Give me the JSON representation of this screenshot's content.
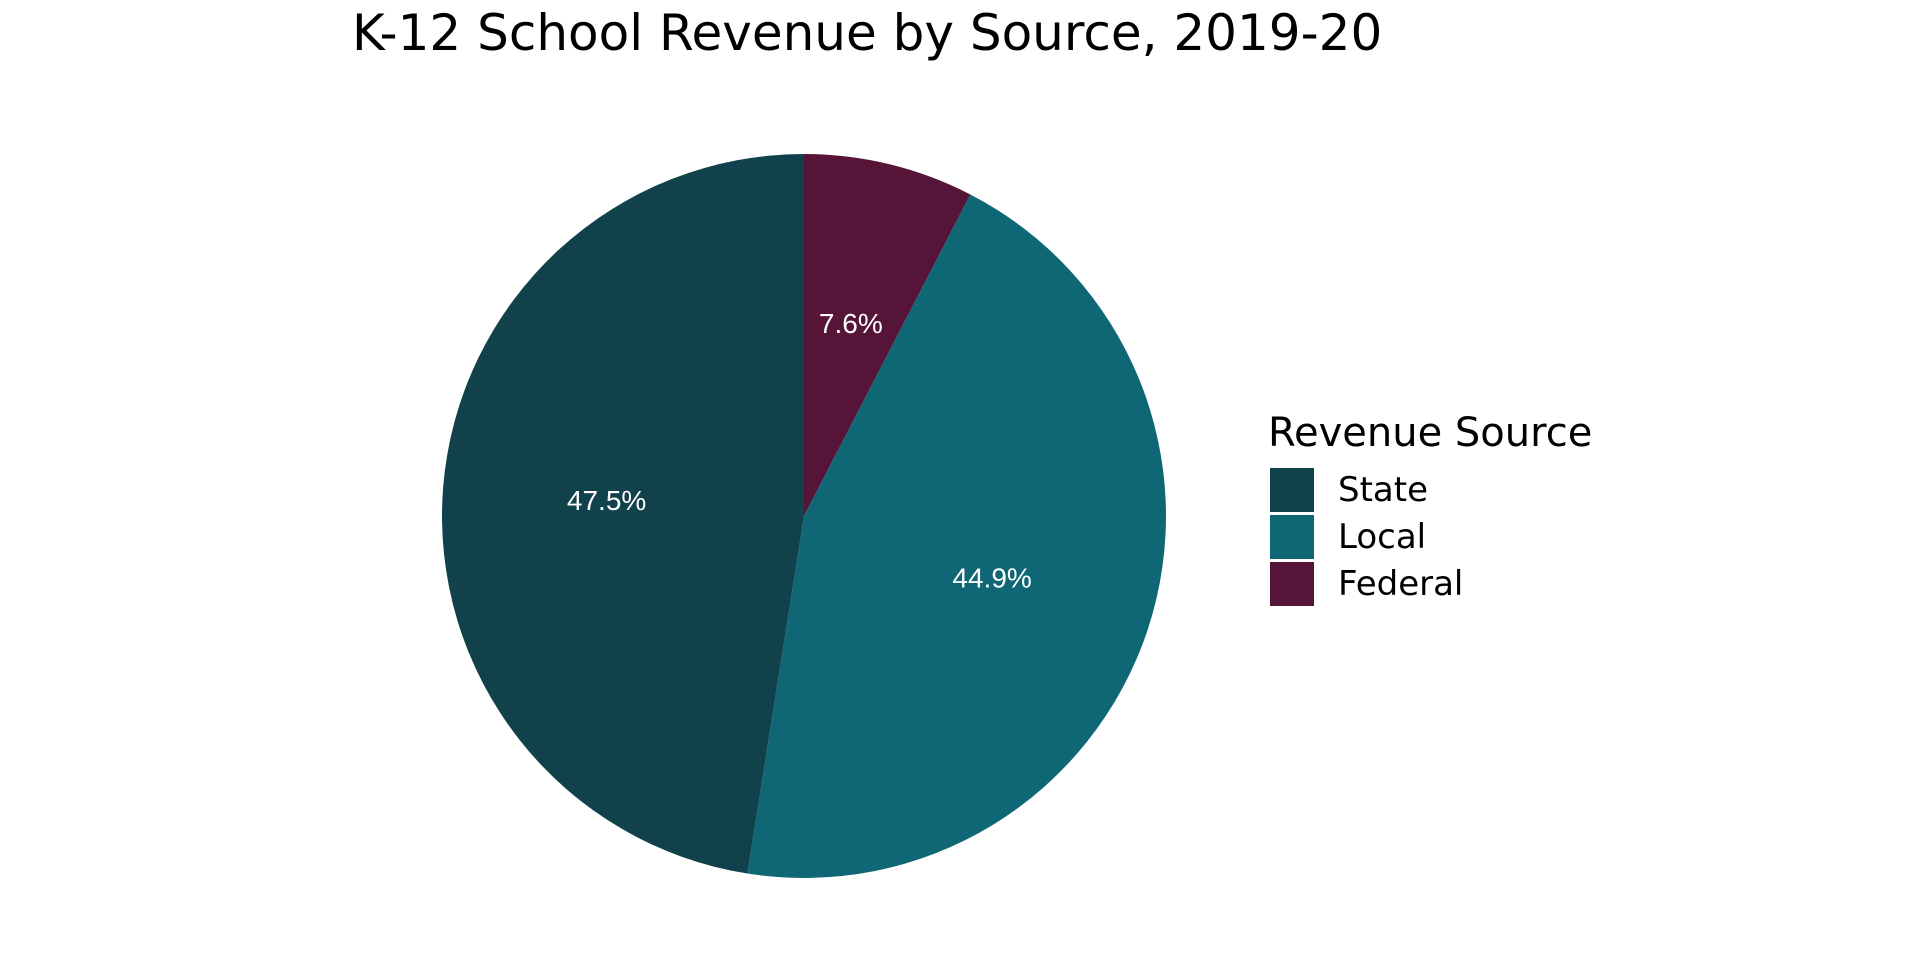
{
  "chart_data": {
    "type": "pie",
    "title": "K-12 School Revenue by Source, 2019-20",
    "legend_title": "Revenue Source",
    "legend_position": "right",
    "start_angle_deg": 0,
    "direction": "clockwise",
    "categories": [
      "Federal",
      "Local",
      "State"
    ],
    "values": [
      7.6,
      44.9,
      47.5
    ],
    "labels": [
      "7.6%",
      "44.9%",
      "47.5%"
    ],
    "colors": [
      "#561438",
      "#0f6674",
      "#11414a"
    ],
    "legend_order": [
      "State",
      "Local",
      "Federal"
    ]
  }
}
